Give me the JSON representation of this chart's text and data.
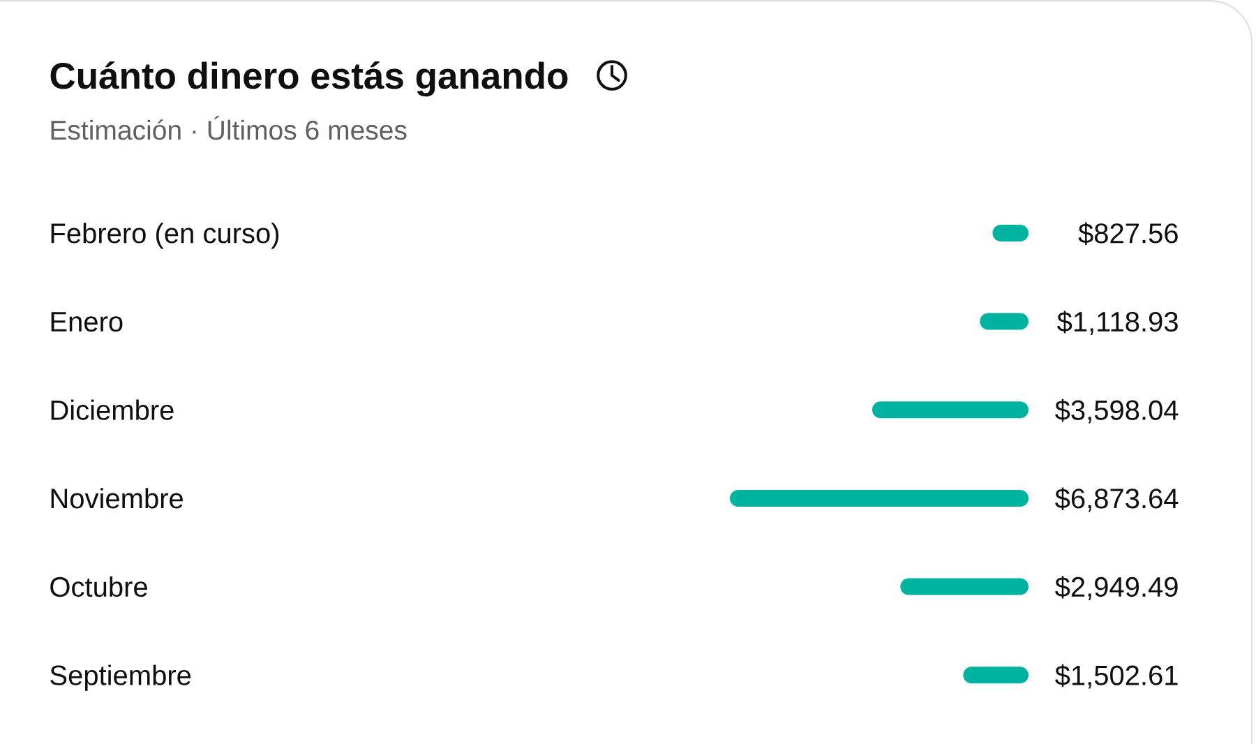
{
  "chart_data": {
    "type": "bar",
    "orientation": "horizontal",
    "title": "Cuánto dinero estás ganando",
    "subtitle": "Estimación · Últimos 6 meses",
    "categories": [
      "Febrero (en curso)",
      "Enero",
      "Diciembre",
      "Noviembre",
      "Octubre",
      "Septiembre"
    ],
    "values": [
      827.56,
      1118.93,
      3598.04,
      6873.64,
      2949.49,
      1502.61
    ],
    "value_labels": [
      "$827.56",
      "$1,118.93",
      "$3,598.04",
      "$6,873.64",
      "$2,949.49",
      "$1,502.61"
    ],
    "color": "#00b3a0",
    "tick_labels": "y"
  }
}
